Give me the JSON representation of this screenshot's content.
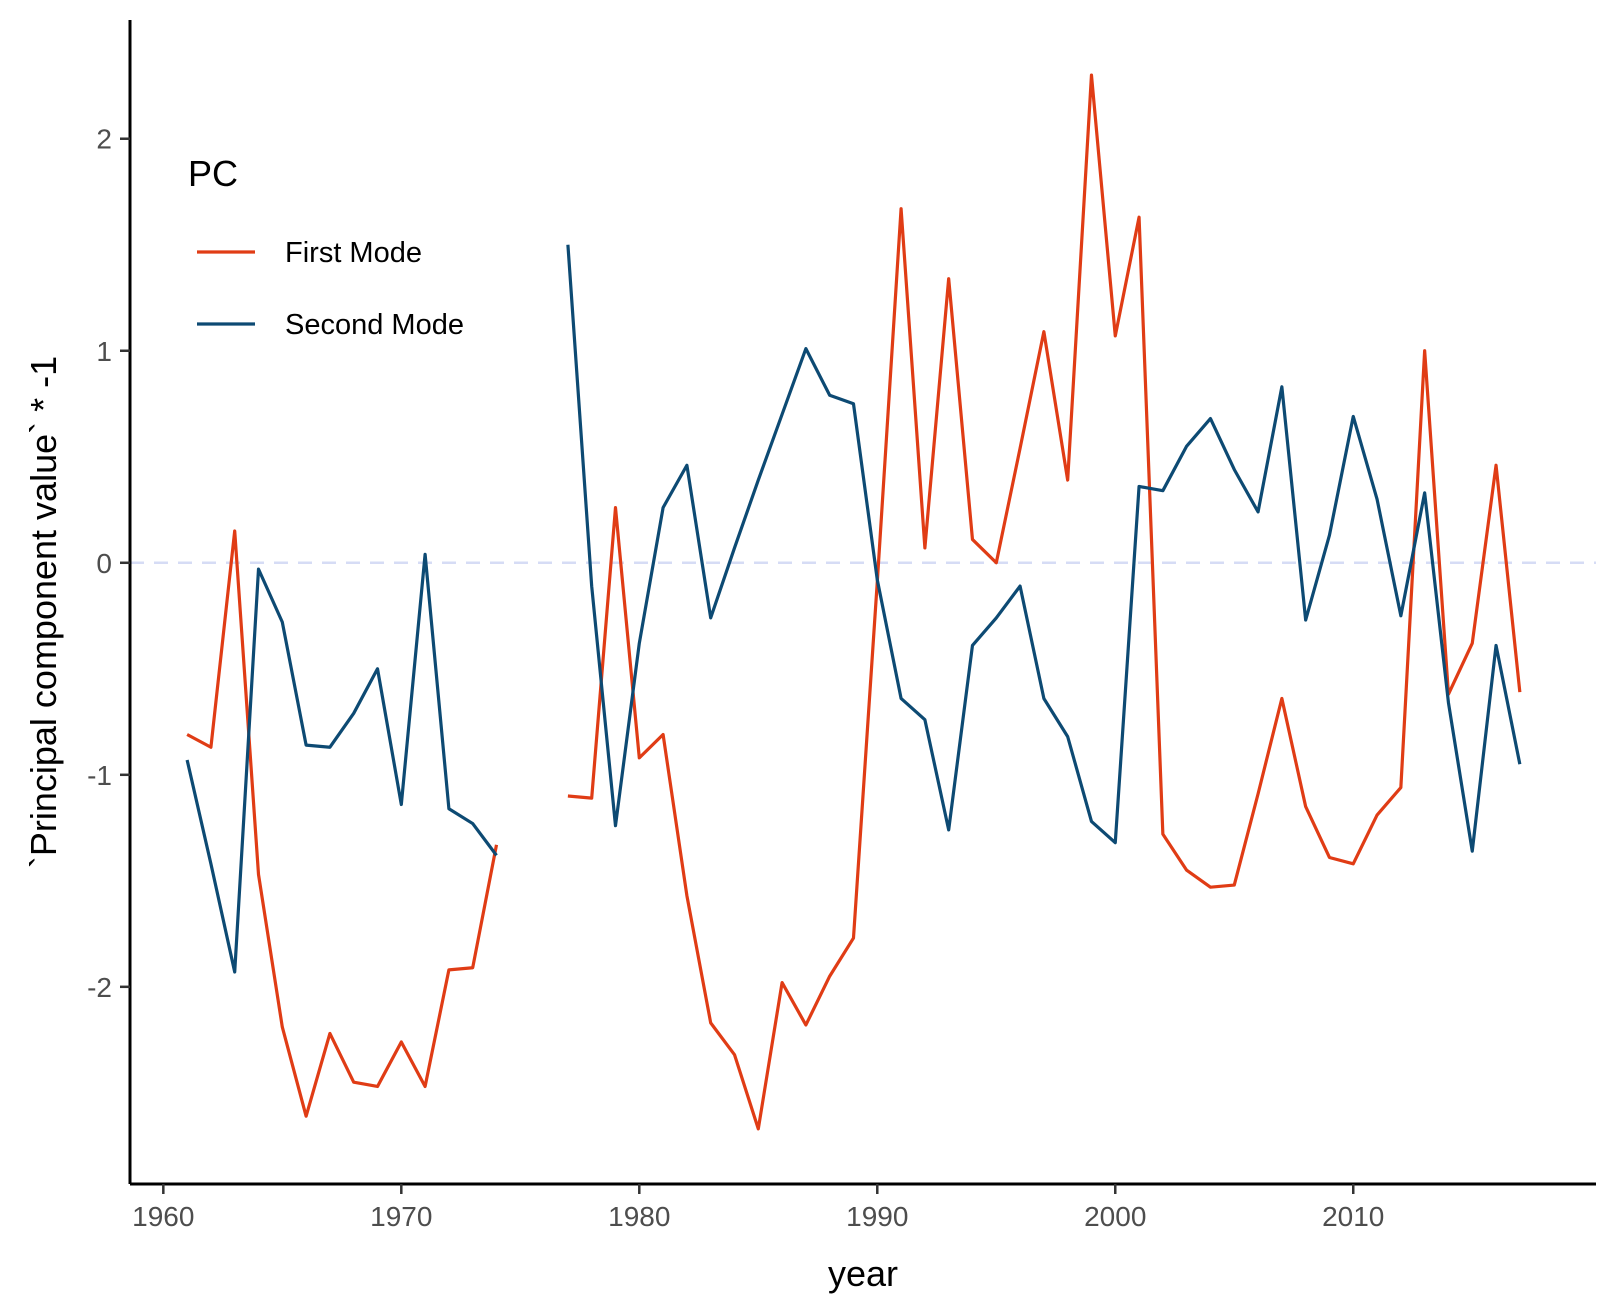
{
  "chart_data": {
    "type": "line",
    "xlabel": "year",
    "ylabel": "`Principal component value` * -1",
    "xlim": [
      1958.6,
      2020.2
    ],
    "ylim": [
      -2.93,
      2.56
    ],
    "x_ticks": [
      1960,
      1970,
      1980,
      1990,
      2000,
      2010
    ],
    "x_tick_labels": [
      "1960",
      "1970",
      "1980",
      "1990",
      "2000",
      "2010"
    ],
    "y_ticks": [
      -2,
      -1,
      0,
      1,
      2
    ],
    "y_tick_labels": [
      "-2",
      "-1",
      "0",
      "1",
      "2"
    ],
    "reference_line": {
      "y": 0,
      "style": "dashed",
      "color": "#d6dcf5"
    },
    "grid": false,
    "legend": {
      "title": "PC",
      "position": "top-left"
    },
    "x": [
      1961,
      1962,
      1963,
      1964,
      1965,
      1966,
      1967,
      1968,
      1969,
      1970,
      1971,
      1972,
      1973,
      1974,
      1975,
      1976,
      1977,
      1978,
      1979,
      1980,
      1981,
      1982,
      1983,
      1984,
      1985,
      1986,
      1987,
      1988,
      1989,
      1990,
      1991,
      1992,
      1993,
      1994,
      1995,
      1996,
      1997,
      1998,
      1999,
      2000,
      2001,
      2002,
      2003,
      2004,
      2005,
      2006,
      2007,
      2008,
      2009,
      2010,
      2011,
      2012,
      2013,
      2014,
      2015,
      2016,
      2017
    ],
    "series": [
      {
        "name": "First Mode",
        "color": "#e03c15",
        "values": [
          -0.81,
          -0.87,
          0.15,
          -1.47,
          -2.19,
          -2.61,
          -2.22,
          -2.45,
          -2.47,
          -2.26,
          -2.47,
          -1.92,
          -1.91,
          -1.33,
          null,
          null,
          -1.1,
          -1.11,
          0.26,
          -0.92,
          -0.81,
          -1.57,
          -2.17,
          -2.32,
          -2.67,
          -1.98,
          -2.18,
          -1.95,
          -1.77,
          -0.09,
          1.67,
          0.07,
          1.34,
          0.11,
          0.0,
          0.54,
          1.09,
          0.39,
          2.3,
          1.07,
          1.63,
          -1.28,
          -1.45,
          -1.53,
          -1.52,
          -1.09,
          -0.64,
          -1.15,
          -1.39,
          -1.42,
          -1.19,
          -1.06,
          1.0,
          -0.62,
          -0.38,
          0.46,
          -0.61
        ]
      },
      {
        "name": "Second Mode",
        "color": "#0d4a73",
        "values": [
          -0.93,
          -1.42,
          -1.93,
          -0.03,
          -0.28,
          -0.86,
          -0.87,
          -0.71,
          -0.5,
          -1.14,
          0.04,
          -1.16,
          -1.23,
          -1.38,
          null,
          null,
          1.5,
          -0.11,
          -1.24,
          -0.38,
          0.26,
          0.46,
          -0.26,
          0.07,
          0.39,
          0.7,
          1.01,
          0.79,
          0.75,
          -0.08,
          -0.64,
          -0.74,
          -1.26,
          -0.39,
          -0.26,
          -0.11,
          -0.64,
          -0.82,
          -1.22,
          -1.32,
          0.36,
          0.34,
          0.55,
          0.68,
          0.44,
          0.24,
          0.83,
          -0.27,
          0.13,
          0.69,
          0.3,
          -0.25,
          0.33,
          -0.66,
          -1.36,
          -0.39,
          -0.95
        ]
      }
    ]
  }
}
